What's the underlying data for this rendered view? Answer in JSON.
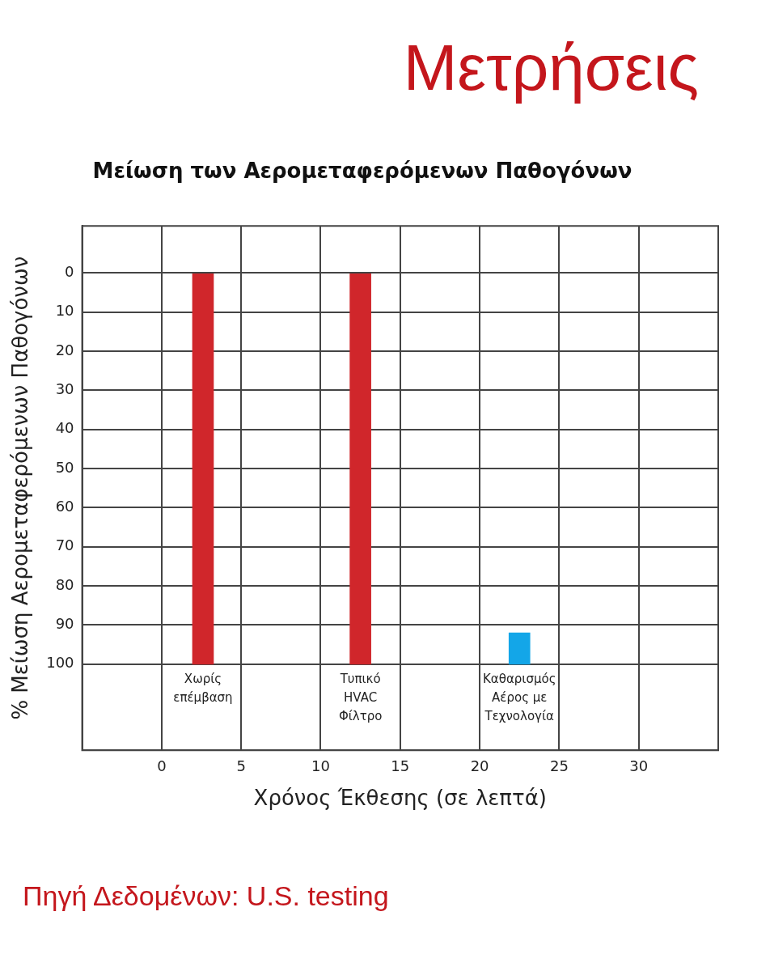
{
  "chart_data": {
    "type": "bar",
    "title": "Μετρήσεις",
    "subtitle": "Μείωση των Αερομεταφερόμενων Παθογόνων",
    "xlabel": "Χρόνος Έκθεσης (σε λεπτά)",
    "ylabel": "% Μείωση Αερομεταφερόμενων Παθογόνων",
    "series": [
      {
        "name": "Χωρίς επέμβαση",
        "color": "#d0262b",
        "x": [
          2.6
        ],
        "base": [
          100
        ],
        "values": [
          -100
        ]
      },
      {
        "name": "Τυπικό HVAC Φίλτρο",
        "color": "#d0262b",
        "x": [
          12.5
        ],
        "base": [
          100
        ],
        "values": [
          -100
        ]
      },
      {
        "name": "Καθαρισμός Αέρος με Τεχνολογία",
        "color": "#13a6e8",
        "x": [
          22.5
        ],
        "base": [
          100
        ],
        "values": [
          -8
        ]
      }
    ],
    "xlim": [
      -5,
      35
    ],
    "xticks": [
      0,
      5,
      10,
      15,
      20,
      25,
      30
    ],
    "ylim": [
      122,
      -12
    ],
    "yticks": [
      0,
      10,
      20,
      30,
      40,
      50,
      60,
      70,
      80,
      90,
      100
    ],
    "grid": true,
    "annotations": [
      "Πηγή Δεδομένων: U.S. testing"
    ]
  }
}
